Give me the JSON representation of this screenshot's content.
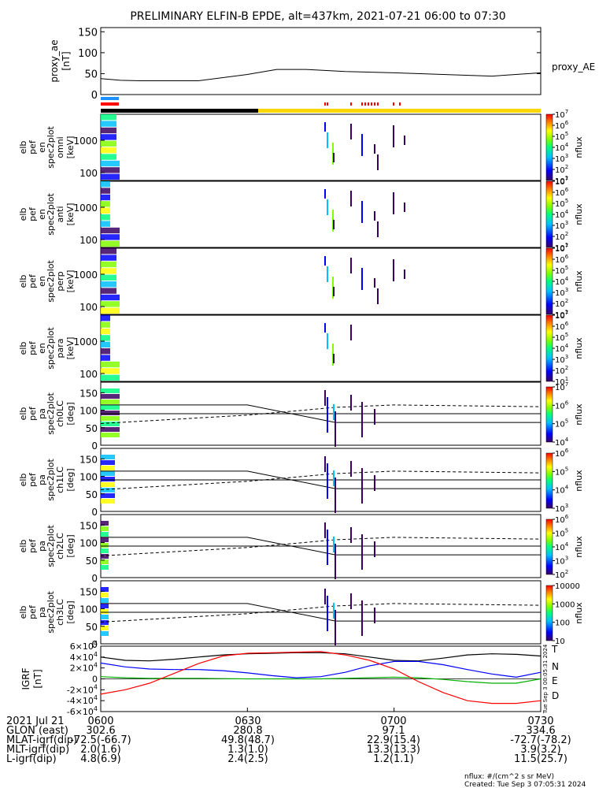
{
  "title": "PRELIMINARY ELFIN-B EPDE, alt=437km, 2021-07-21 06:00 to 07:30",
  "time_range": [
    "06:00",
    "07:30"
  ],
  "proxy_ae": {
    "ylabel": [
      "proxy_ae",
      "[nT]"
    ],
    "legend": "proxy_AE",
    "ticks": [
      "0",
      "50",
      "100",
      "150"
    ],
    "ylim": [
      0,
      160
    ],
    "x_min": [
      0,
      4,
      8,
      12,
      20,
      30,
      36,
      42,
      50,
      60,
      70,
      80,
      90
    ],
    "values": [
      38,
      34,
      33,
      33,
      33,
      48,
      60,
      60,
      55,
      52,
      48,
      44,
      52
    ]
  },
  "spec_panels": [
    {
      "label": [
        "elb",
        "pef",
        "en",
        "spec2plot",
        "omni",
        "[keV]"
      ],
      "ticks": [
        "100",
        "1000"
      ],
      "cbar_ticks": [
        "10^1",
        "10^2",
        "10^3",
        "10^4",
        "10^5",
        "10^6",
        "10^7"
      ],
      "cbar_label": "nflux"
    },
    {
      "label": [
        "elb",
        "pef",
        "en",
        "spec2plot",
        "anti",
        "[keV]"
      ],
      "ticks": [
        "100",
        "1000"
      ],
      "cbar_ticks": [
        "10^1",
        "10^2",
        "10^3",
        "10^4",
        "10^5",
        "10^6",
        "10^7"
      ],
      "cbar_label": "nflux"
    },
    {
      "label": [
        "elb",
        "pef",
        "en",
        "spec2plot",
        "perp",
        "[keV]"
      ],
      "ticks": [
        "100",
        "1000"
      ],
      "cbar_ticks": [
        "10^1",
        "10^2",
        "10^3",
        "10^4",
        "10^5",
        "10^6",
        "10^7"
      ],
      "cbar_label": "nflux"
    },
    {
      "label": [
        "elb",
        "pef",
        "en",
        "spec2plot",
        "para",
        "[keV]"
      ],
      "ticks": [
        "100",
        "1000"
      ],
      "cbar_ticks": [
        "10^1",
        "10^2",
        "10^3",
        "10^4",
        "10^5",
        "10^6",
        "10^7"
      ],
      "cbar_label": "nflux"
    }
  ],
  "pa_panels": [
    {
      "label": [
        "elb",
        "pef",
        "pa",
        "spec2plot",
        "ch0LC",
        "[deg]"
      ],
      "ticks": [
        "0",
        "50",
        "100",
        "150"
      ],
      "cbar_ticks": [
        "10^4",
        "10^5",
        "10^6",
        "10^7"
      ],
      "cbar_label": "nflux"
    },
    {
      "label": [
        "elb",
        "pef",
        "pa",
        "spec2plot",
        "ch1LC",
        "[deg]"
      ],
      "ticks": [
        "0",
        "50",
        "100",
        "150"
      ],
      "cbar_ticks": [
        "10^3",
        "10^4",
        "10^5",
        "10^6"
      ],
      "cbar_label": "nflux"
    },
    {
      "label": [
        "elb",
        "pef",
        "pa",
        "spec2plot",
        "ch2LC",
        "[deg]"
      ],
      "ticks": [
        "0",
        "50",
        "100",
        "150"
      ],
      "cbar_ticks": [
        "10^2",
        "10^3",
        "10^4",
        "10^5",
        "10^6"
      ],
      "cbar_label": "nflux"
    },
    {
      "label": [
        "elb",
        "pef",
        "pa",
        "spec2plot",
        "ch3LC",
        "[deg]"
      ],
      "ticks": [
        "0",
        "50",
        "100",
        "150"
      ],
      "cbar_ticks": [
        "10",
        "100",
        "1000",
        "10000"
      ],
      "cbar_label": "nflux"
    }
  ],
  "igrf": {
    "ylabel": [
      "IGRF",
      "[nT]"
    ],
    "ticks": [
      "6×10^4",
      "4×10^4",
      "2×10^4",
      "0",
      "-2×10^4",
      "-4×10^4",
      "-6×10^4"
    ],
    "legend": [
      {
        "name": "T",
        "color": "#000000"
      },
      {
        "name": "N",
        "color": "#0000ff"
      },
      {
        "name": "E",
        "color": "#00b000"
      },
      {
        "name": "D",
        "color": "#ff0000"
      }
    ],
    "side_stamp": "Tue Sep 3 00:05:31 2024"
  },
  "chart_data": {
    "type": "line",
    "title": "PRELIMINARY ELFIN-B EPDE, alt=437km, 2021-07-21 06:00 to 07:30",
    "xlabel": "",
    "x_min": [
      0,
      5,
      10,
      15,
      20,
      25,
      30,
      35,
      40,
      45,
      50,
      55,
      60,
      65,
      70,
      75,
      80,
      85,
      90
    ],
    "series": [
      {
        "name": "T",
        "values": [
          40000,
          34000,
          33000,
          36000,
          40000,
          44000,
          46000,
          47000,
          48000,
          48000,
          46000,
          40000,
          34000,
          33000,
          38000,
          44000,
          46000,
          45000,
          42000
        ]
      },
      {
        "name": "N",
        "values": [
          29000,
          22000,
          18000,
          17000,
          17000,
          15000,
          11000,
          6000,
          2000,
          4000,
          12000,
          24000,
          32000,
          32000,
          26000,
          17000,
          9000,
          3000,
          12000
        ]
      },
      {
        "name": "E",
        "values": [
          4000,
          2000,
          1000,
          1000,
          1000,
          500,
          0,
          0,
          0,
          0,
          1000,
          2000,
          3000,
          2000,
          -1000,
          -5000,
          -8000,
          -8000,
          0
        ]
      },
      {
        "name": "D",
        "values": [
          -28000,
          -20000,
          -8000,
          10000,
          28000,
          42000,
          47000,
          48000,
          49000,
          50000,
          44000,
          34000,
          18000,
          -5000,
          -25000,
          -40000,
          -45000,
          -45000,
          -40000
        ]
      }
    ],
    "ylim": [
      -60000,
      60000
    ]
  },
  "ephemeris": {
    "date": "2021 Jul 21",
    "times": [
      "0600",
      "0630",
      "0700",
      "0730"
    ],
    "rows": [
      {
        "label": "GLON (east)",
        "values": [
          "302.6",
          "280.8",
          "97.1",
          "334.6"
        ]
      },
      {
        "label": "MLAT-igrf(dip)",
        "values": [
          "-72.5(-66.7)",
          "49.8(48.7)",
          "22.9(15.4)",
          "-72.7(-78.2)"
        ]
      },
      {
        "label": "MLT-igrf(dip)",
        "values": [
          "2.0(1.6)",
          "1.3(1.0)",
          "13.3(13.3)",
          "3.9(3.2)"
        ]
      },
      {
        "label": "L-igrf(dip)",
        "values": [
          "4.8(6.9)",
          "2.4(2.5)",
          "1.2(1.1)",
          "11.5(25.7)"
        ]
      }
    ]
  },
  "footer": {
    "units": "nflux: #/(cm^2 s sr MeV)",
    "created": "Created: Tue Sep  3 07:05:31 2024"
  },
  "colors": {
    "blue_bar": "#1e90ff",
    "red_bar": "#ff0000",
    "black_bar": "#000000",
    "yellow_bar": "#ffd700"
  }
}
